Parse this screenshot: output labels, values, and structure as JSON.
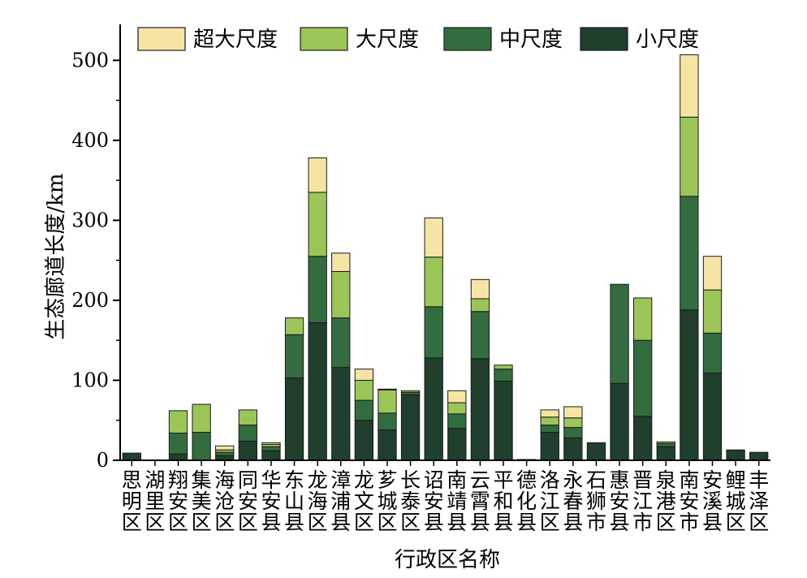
{
  "chart_data": {
    "type": "bar",
    "stacked": true,
    "xlabel": "行政区名称",
    "ylabel": "生态廊道长度/km",
    "ylim": [
      0,
      545
    ],
    "yticks": [
      0,
      100,
      200,
      300,
      400,
      500
    ],
    "legend_position": "top",
    "categories": [
      "思明区",
      "湖里区",
      "翔安区",
      "集美区",
      "海沧区",
      "同安区",
      "华安县",
      "东山县",
      "龙海区",
      "漳浦县",
      "龙文区",
      "芗城区",
      "长泰区",
      "诏安县",
      "南靖县",
      "云霄县",
      "平和县",
      "德化县",
      "洛江区",
      "永春县",
      "石狮市",
      "惠安县",
      "晋江市",
      "泉港区",
      "南安市",
      "安溪县",
      "鲤城区",
      "丰泽区"
    ],
    "series": [
      {
        "name": "小尺度",
        "color": "#203f2c",
        "values": [
          9,
          0,
          8,
          0,
          6,
          24,
          12,
          103,
          172,
          116,
          50,
          38,
          82,
          128,
          40,
          127,
          99,
          1,
          35,
          28,
          22,
          96,
          55,
          17,
          188,
          109,
          13,
          10
        ]
      },
      {
        "name": "中尺度",
        "color": "#336d3f",
        "values": [
          0,
          0,
          26,
          35,
          4,
          20,
          5,
          54,
          83,
          62,
          25,
          21,
          3,
          64,
          18,
          59,
          15,
          0,
          9,
          13,
          0,
          124,
          95,
          4,
          142,
          50,
          0,
          0
        ]
      },
      {
        "name": "大尺度",
        "color": "#9cc557",
        "values": [
          0,
          0,
          28,
          35,
          3,
          19,
          3,
          21,
          80,
          58,
          25,
          29,
          2,
          62,
          14,
          16,
          5,
          0,
          10,
          12,
          0,
          0,
          53,
          2,
          99,
          54,
          0,
          0
        ]
      },
      {
        "name": "超大尺度",
        "color": "#f6e4a4",
        "values": [
          0,
          0,
          0,
          0,
          5,
          0,
          2,
          0,
          43,
          23,
          14,
          1,
          0,
          49,
          15,
          24,
          0,
          0,
          9,
          14,
          0,
          0,
          0,
          0,
          78,
          42,
          0,
          0
        ]
      }
    ]
  }
}
